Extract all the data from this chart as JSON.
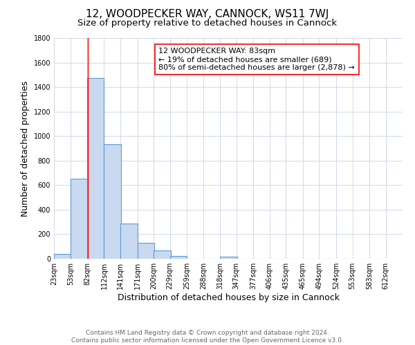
{
  "title": "12, WOODPECKER WAY, CANNOCK, WS11 7WJ",
  "subtitle": "Size of property relative to detached houses in Cannock",
  "xlabel": "Distribution of detached houses by size in Cannock",
  "ylabel": "Number of detached properties",
  "bin_labels": [
    "23sqm",
    "53sqm",
    "82sqm",
    "112sqm",
    "141sqm",
    "171sqm",
    "200sqm",
    "229sqm",
    "259sqm",
    "288sqm",
    "318sqm",
    "347sqm",
    "377sqm",
    "406sqm",
    "435sqm",
    "465sqm",
    "494sqm",
    "524sqm",
    "553sqm",
    "583sqm",
    "612sqm"
  ],
  "bin_edges": [
    23,
    53,
    82,
    112,
    141,
    171,
    200,
    229,
    259,
    288,
    318,
    347,
    377,
    406,
    435,
    465,
    494,
    524,
    553,
    583,
    612
  ],
  "bar_heights": [
    40,
    650,
    1475,
    935,
    285,
    130,
    65,
    22,
    0,
    0,
    15,
    0,
    0,
    0,
    0,
    0,
    0,
    0,
    0,
    0
  ],
  "bar_color": "#c9d9f0",
  "bar_edge_color": "#5b9bd5",
  "red_line_x": 83,
  "annotation_line1": "12 WOODPECKER WAY: 83sqm",
  "annotation_line2": "← 19% of detached houses are smaller (689)",
  "annotation_line3": "80% of semi-detached houses are larger (2,878) →",
  "ylim": [
    0,
    1800
  ],
  "yticks": [
    0,
    200,
    400,
    600,
    800,
    1000,
    1200,
    1400,
    1600,
    1800
  ],
  "footnote_line1": "Contains HM Land Registry data © Crown copyright and database right 2024.",
  "footnote_line2": "Contains public sector information licensed under the Open Government Licence v3.0.",
  "bg_color": "#ffffff",
  "grid_color": "#d0d8e8",
  "title_fontsize": 11,
  "subtitle_fontsize": 9.5,
  "axis_label_fontsize": 9,
  "tick_fontsize": 7,
  "annotation_fontsize": 8,
  "footnote_fontsize": 6.5
}
